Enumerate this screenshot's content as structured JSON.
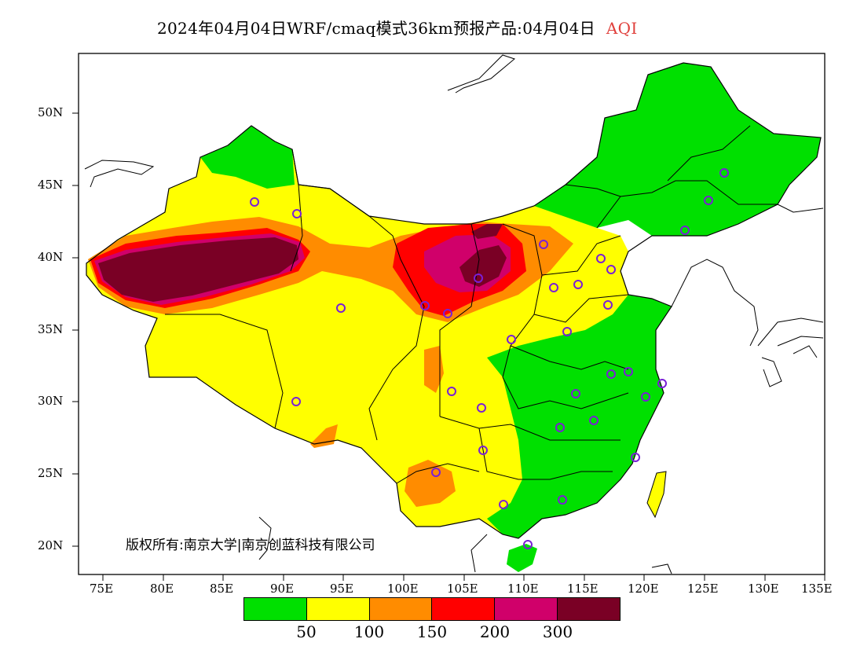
{
  "title": {
    "main": "2024年04月04日WRF/cmaq模式36km预报产品:04月04日",
    "variable": "AQI"
  },
  "map": {
    "lat_labels": [
      "50N",
      "45N",
      "40N",
      "35N",
      "30N",
      "25N",
      "20N"
    ],
    "lon_labels": [
      "75E",
      "80E",
      "85E",
      "90E",
      "95E",
      "100E",
      "105E",
      "110E",
      "115E",
      "120E",
      "125E",
      "130E",
      "135E"
    ],
    "copyright": "版权所有:南京大学|南京创蓝科技有限公司",
    "colors": {
      "good": "#00e000",
      "moderate": "#ffff00",
      "unhealthy_sensitive": "#ff8000",
      "unhealthy": "#ff0000",
      "very_unhealthy": "#d0006a",
      "hazardous": "#7a0025"
    }
  },
  "legend": {
    "colors": [
      "#00e000",
      "#ffff00",
      "#ff8c00",
      "#ff0000",
      "#d0006a",
      "#7a0025"
    ],
    "ticks": [
      "50",
      "100",
      "150",
      "200",
      "300"
    ]
  }
}
